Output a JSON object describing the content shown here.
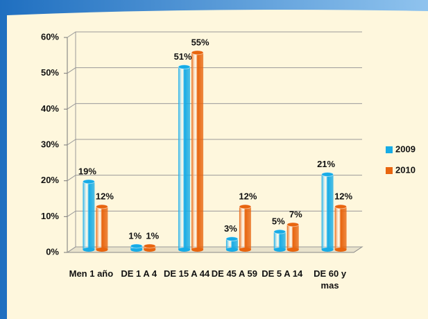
{
  "chart_data": {
    "type": "bar3d",
    "categories": [
      "Men 1 año",
      "DE 1 A 4",
      "DE 15 A 44",
      "DE 45 A 59",
      "DE 5 A 14",
      "DE 60 y mas"
    ],
    "series": [
      {
        "name": "2009",
        "color": "#17ace6",
        "values": [
          19,
          1,
          51,
          3,
          5,
          21
        ],
        "value_labels": [
          "19%",
          "1%",
          "51%",
          "3%",
          "5%",
          "21%"
        ]
      },
      {
        "name": "2010",
        "color": "#e8650e",
        "values": [
          12,
          1,
          55,
          12,
          7,
          12
        ],
        "value_labels": [
          "12%",
          "1%",
          "55%",
          "12%",
          "7%",
          "12%"
        ]
      }
    ],
    "ylim": [
      0,
      60
    ],
    "yticks": [
      {
        "value": 0,
        "label": "0%"
      },
      {
        "value": 10,
        "label": "10%"
      },
      {
        "value": 20,
        "label": "20%"
      },
      {
        "value": 30,
        "label": "30%"
      },
      {
        "value": 40,
        "label": "40%"
      },
      {
        "value": 50,
        "label": "50%"
      },
      {
        "value": 60,
        "label": "60%"
      }
    ],
    "grid": true,
    "legend": "right"
  }
}
